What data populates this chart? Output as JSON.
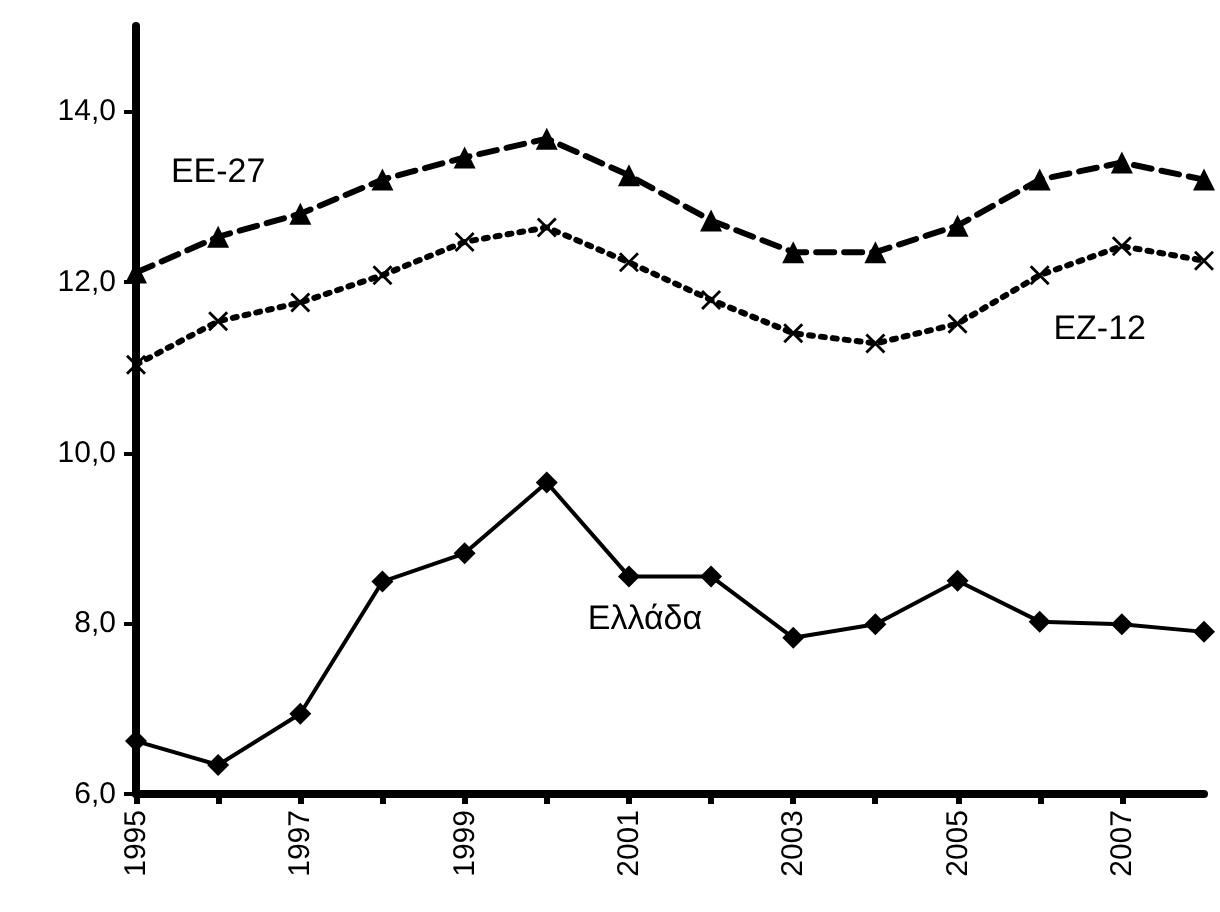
{
  "chart_data": {
    "type": "line",
    "x": [
      1995,
      1996,
      1997,
      1998,
      1999,
      2000,
      2001,
      2002,
      2003,
      2004,
      2005,
      2006,
      2007,
      2008
    ],
    "series": [
      {
        "name": "EE-27",
        "color": "#000000",
        "marker": "triangle",
        "line_style": "dashed",
        "values": [
          12.11,
          12.53,
          12.8,
          13.2,
          13.46,
          13.68,
          13.25,
          12.72,
          12.35,
          12.35,
          12.66,
          13.2,
          13.4,
          13.2
        ]
      },
      {
        "name": "EZ-12",
        "color": "#000000",
        "marker": "cross",
        "line_style": "dotted",
        "values": [
          11.03,
          11.54,
          11.76,
          12.08,
          12.47,
          12.64,
          12.23,
          11.79,
          11.4,
          11.28,
          11.51,
          12.08,
          12.42,
          12.25
        ]
      },
      {
        "name": "Ελλάδα",
        "color": "#000000",
        "marker": "diamond",
        "line_style": "solid",
        "values": [
          6.62,
          6.34,
          6.94,
          8.49,
          8.82,
          9.65,
          8.55,
          8.55,
          7.83,
          7.99,
          8.5,
          8.02,
          7.99,
          7.9
        ]
      }
    ],
    "xlim": [
      1995,
      2008
    ],
    "xticks": [
      1995,
      {
        "value": 1996,
        "label": null
      },
      1997,
      {
        "value": 1998,
        "label": null
      },
      1999,
      {
        "value": 2000,
        "label": null
      },
      2001,
      {
        "value": 2002,
        "label": null
      },
      2003,
      {
        "value": 2004,
        "label": null
      },
      2005,
      {
        "value": 2006,
        "label": null
      },
      2007
    ],
    "ylim": [
      6,
      15
    ],
    "yticks": [
      {
        "value": 6,
        "label": "6,0"
      },
      {
        "value": 8,
        "label": "8,0"
      },
      {
        "value": 10,
        "label": "10,0"
      },
      {
        "value": 12,
        "label": "12,0"
      },
      {
        "value": 14,
        "label": "14,0"
      }
    ],
    "grid": false,
    "legend": false
  }
}
